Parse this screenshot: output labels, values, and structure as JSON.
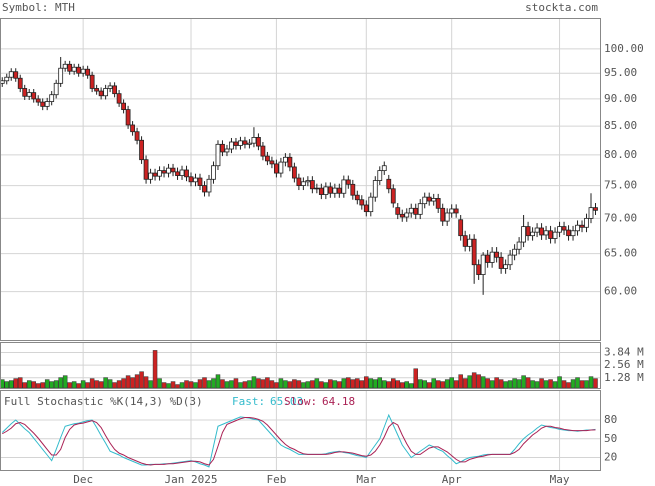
{
  "chart_data": [
    {
      "type": "candlestick",
      "title": "Symbol: MTH",
      "source": "stockta.com",
      "log_scale": true,
      "grid": true,
      "up_color": "#ffffff",
      "down_color": "#cc2222",
      "ylim": [
        54.2,
        106.7
      ],
      "yticks": [
        {
          "value": 100,
          "label": "100.00"
        },
        {
          "value": 95,
          "label": "95.00"
        },
        {
          "value": 90,
          "label": "90.00"
        },
        {
          "value": 85,
          "label": "85.00"
        },
        {
          "value": 80,
          "label": "80.00"
        },
        {
          "value": 75,
          "label": "75.00"
        },
        {
          "value": 70,
          "label": "70.00"
        },
        {
          "value": 65,
          "label": "65.00"
        },
        {
          "value": 60,
          "label": "60.00"
        }
      ],
      "xlim": [
        -0.5,
        133
      ],
      "xticks": [
        {
          "value": 18,
          "label": "Dec"
        },
        {
          "value": 42,
          "label": "Jan 2025"
        },
        {
          "value": 61,
          "label": "Feb"
        },
        {
          "value": 81,
          "label": "Mar"
        },
        {
          "value": 100,
          "label": "Apr"
        },
        {
          "value": 124,
          "label": "May"
        }
      ],
      "candles": [
        [
          93.0,
          94.2,
          92.3,
          93.5
        ],
        [
          93.5,
          94.9,
          92.8,
          94.2
        ],
        [
          94.2,
          96.0,
          93.5,
          95.3
        ],
        [
          95.3,
          96.0,
          93.3,
          94.0
        ],
        [
          94.0,
          94.7,
          91.3,
          92.0
        ],
        [
          92.0,
          92.7,
          89.8,
          90.5
        ],
        [
          90.5,
          91.9,
          89.8,
          91.2
        ],
        [
          91.2,
          91.9,
          89.3,
          90.0
        ],
        [
          90.0,
          90.7,
          88.7,
          89.4
        ],
        [
          89.4,
          90.1,
          87.9,
          88.6
        ],
        [
          88.6,
          90.2,
          87.9,
          89.5
        ],
        [
          89.5,
          91.5,
          88.8,
          90.8
        ],
        [
          90.8,
          93.7,
          90.1,
          93.0
        ],
        [
          93.0,
          98.3,
          92.3,
          96.0
        ],
        [
          96.0,
          97.5,
          95.3,
          96.8
        ],
        [
          96.8,
          97.5,
          94.7,
          95.4
        ],
        [
          95.4,
          96.9,
          94.7,
          96.2
        ],
        [
          96.2,
          96.9,
          94.3,
          95.0
        ],
        [
          95.0,
          96.5,
          94.3,
          95.8
        ],
        [
          95.8,
          96.5,
          93.9,
          94.6
        ],
        [
          94.6,
          95.3,
          91.3,
          92.0
        ],
        [
          92.0,
          92.7,
          90.8,
          91.5
        ],
        [
          91.5,
          92.2,
          89.9,
          90.6
        ],
        [
          90.6,
          92.7,
          89.9,
          92.0
        ],
        [
          92.0,
          93.2,
          91.3,
          92.5
        ],
        [
          92.5,
          93.2,
          90.3,
          91.0
        ],
        [
          91.0,
          91.7,
          88.5,
          89.2
        ],
        [
          89.2,
          89.9,
          87.3,
          88.0
        ],
        [
          88.0,
          88.7,
          84.5,
          85.2
        ],
        [
          85.2,
          85.9,
          83.3,
          84.0
        ],
        [
          84.0,
          84.7,
          81.8,
          82.5
        ],
        [
          82.5,
          83.2,
          78.5,
          79.2
        ],
        [
          79.2,
          79.9,
          75.3,
          76.0
        ],
        [
          76.0,
          77.7,
          75.3,
          77.0
        ],
        [
          77.0,
          77.7,
          75.8,
          76.5
        ],
        [
          76.5,
          78.1,
          75.8,
          77.4
        ],
        [
          77.4,
          78.1,
          76.3,
          77.0
        ],
        [
          77.0,
          78.5,
          76.3,
          77.8
        ],
        [
          77.8,
          78.5,
          76.5,
          77.2
        ],
        [
          77.2,
          77.9,
          75.9,
          76.6
        ],
        [
          76.6,
          78.2,
          75.9,
          77.5
        ],
        [
          77.5,
          78.2,
          75.7,
          76.4
        ],
        [
          76.4,
          77.1,
          74.9,
          75.6
        ],
        [
          75.6,
          76.9,
          74.9,
          76.2
        ],
        [
          76.2,
          76.9,
          74.3,
          75.0
        ],
        [
          75.0,
          75.7,
          73.3,
          74.0
        ],
        [
          74.0,
          76.7,
          73.3,
          76.0
        ],
        [
          76.0,
          78.9,
          75.3,
          78.2
        ],
        [
          78.2,
          82.5,
          77.5,
          81.8
        ],
        [
          81.8,
          82.5,
          79.8,
          80.5
        ],
        [
          80.5,
          81.7,
          79.8,
          81.0
        ],
        [
          81.0,
          82.9,
          80.3,
          82.2
        ],
        [
          82.2,
          82.9,
          80.9,
          81.6
        ],
        [
          81.6,
          83.1,
          80.9,
          82.4
        ],
        [
          82.4,
          83.1,
          81.1,
          81.8
        ],
        [
          81.8,
          82.7,
          81.1,
          82.0
        ],
        [
          82.0,
          84.8,
          81.3,
          83.0
        ],
        [
          83.0,
          83.7,
          80.8,
          81.5
        ],
        [
          81.5,
          82.2,
          79.1,
          79.8
        ],
        [
          79.8,
          80.5,
          78.3,
          79.0
        ],
        [
          79.0,
          79.7,
          77.8,
          78.5
        ],
        [
          78.5,
          79.2,
          76.3,
          77.0
        ],
        [
          77.0,
          79.5,
          76.3,
          78.8
        ],
        [
          78.8,
          80.3,
          78.1,
          79.6
        ],
        [
          79.6,
          80.3,
          77.3,
          78.0
        ],
        [
          78.0,
          78.7,
          75.5,
          76.2
        ],
        [
          76.2,
          76.9,
          74.3,
          75.0
        ],
        [
          75.0,
          76.3,
          74.3,
          75.6
        ],
        [
          75.6,
          76.5,
          74.9,
          75.8
        ],
        [
          75.8,
          76.5,
          73.8,
          74.5
        ],
        [
          74.5,
          75.3,
          73.8,
          74.6
        ],
        [
          74.6,
          75.3,
          72.9,
          73.6
        ],
        [
          73.6,
          75.5,
          72.9,
          74.8
        ],
        [
          74.8,
          75.5,
          73.1,
          73.8
        ],
        [
          73.8,
          75.3,
          73.1,
          74.6
        ],
        [
          74.6,
          75.3,
          73.1,
          73.8
        ],
        [
          73.8,
          76.6,
          73.1,
          75.9
        ],
        [
          75.9,
          76.6,
          74.5,
          75.2
        ],
        [
          75.2,
          75.9,
          72.8,
          73.5
        ],
        [
          73.5,
          74.2,
          72.1,
          72.8
        ],
        [
          72.8,
          73.5,
          71.3,
          72.0
        ],
        [
          72.0,
          72.7,
          70.3,
          71.0
        ],
        [
          71.0,
          73.9,
          70.3,
          73.2
        ],
        [
          73.2,
          76.5,
          72.5,
          75.8
        ],
        [
          75.8,
          78.1,
          75.1,
          77.4
        ],
        [
          77.4,
          78.9,
          76.7,
          78.2
        ],
        [
          76.0,
          76.7,
          73.8,
          74.5
        ],
        [
          74.5,
          75.2,
          71.6,
          72.3
        ],
        [
          71.6,
          72.3,
          69.9,
          70.6
        ],
        [
          70.6,
          71.3,
          69.5,
          70.2
        ],
        [
          70.2,
          71.5,
          69.5,
          70.8
        ],
        [
          70.8,
          72.2,
          70.1,
          71.5
        ],
        [
          71.5,
          72.2,
          69.9,
          70.6
        ],
        [
          70.6,
          72.9,
          69.9,
          72.2
        ],
        [
          72.2,
          73.9,
          71.5,
          73.2
        ],
        [
          73.2,
          73.9,
          71.9,
          72.6
        ],
        [
          72.6,
          73.7,
          71.9,
          73.0
        ],
        [
          73.0,
          73.7,
          70.8,
          71.5
        ],
        [
          71.5,
          72.2,
          68.9,
          69.6
        ],
        [
          69.6,
          71.5,
          68.9,
          70.8
        ],
        [
          70.8,
          72.1,
          70.1,
          71.4
        ],
        [
          71.4,
          72.1,
          70.1,
          70.8
        ],
        [
          69.8,
          70.5,
          66.8,
          67.5
        ],
        [
          67.5,
          68.2,
          65.3,
          66.0
        ],
        [
          66.0,
          67.7,
          65.3,
          67.0
        ],
        [
          67.0,
          67.7,
          61.0,
          63.5
        ],
        [
          63.5,
          64.2,
          61.5,
          62.2
        ],
        [
          62.2,
          65.2,
          59.6,
          64.8
        ],
        [
          64.8,
          65.5,
          63.1,
          63.8
        ],
        [
          63.8,
          65.9,
          63.1,
          65.2
        ],
        [
          65.2,
          65.9,
          63.8,
          64.5
        ],
        [
          64.5,
          65.2,
          62.3,
          63.0
        ],
        [
          63.0,
          64.2,
          62.3,
          63.5
        ],
        [
          63.5,
          65.5,
          62.8,
          64.8
        ],
        [
          64.8,
          66.3,
          64.1,
          65.6
        ],
        [
          65.6,
          67.3,
          64.9,
          66.6
        ],
        [
          66.6,
          70.5,
          65.9,
          68.8
        ],
        [
          68.8,
          69.5,
          66.8,
          67.5
        ],
        [
          67.5,
          68.7,
          66.8,
          68.0
        ],
        [
          68.0,
          69.3,
          67.3,
          68.6
        ],
        [
          68.6,
          69.3,
          66.9,
          67.6
        ],
        [
          67.6,
          68.9,
          66.9,
          68.2
        ],
        [
          68.2,
          68.9,
          66.4,
          67.1
        ],
        [
          67.1,
          68.7,
          66.4,
          68.0
        ],
        [
          68.0,
          69.5,
          67.3,
          68.8
        ],
        [
          68.8,
          69.5,
          67.6,
          68.3
        ],
        [
          68.3,
          69.0,
          66.8,
          67.5
        ],
        [
          67.5,
          68.9,
          66.8,
          68.2
        ],
        [
          68.2,
          69.7,
          67.5,
          69.0
        ],
        [
          69.0,
          69.7,
          68.0,
          68.7
        ],
        [
          68.7,
          70.7,
          68.0,
          70.0
        ],
        [
          70.0,
          73.8,
          69.3,
          71.6
        ],
        [
          71.6,
          72.3,
          70.5,
          71.2
        ]
      ]
    },
    {
      "type": "bar",
      "up_color": "#22aa22",
      "down_color": "#cc2222",
      "ylim": [
        0.25,
        4.9
      ],
      "yticks": [
        {
          "value": 3.84,
          "label": "3.84 M"
        },
        {
          "value": 2.56,
          "label": "2.56 M"
        },
        {
          "value": 1.28,
          "label": "1.28 M"
        }
      ],
      "values": [
        1.1,
        0.9,
        1.0,
        1.2,
        1.3,
        0.8,
        1.0,
        0.9,
        0.7,
        0.8,
        1.1,
        0.9,
        1.0,
        1.3,
        1.5,
        0.8,
        0.9,
        0.7,
        1.0,
        0.8,
        1.2,
        1.0,
        0.9,
        1.3,
        1.1,
        0.8,
        1.0,
        1.2,
        1.5,
        1.3,
        1.6,
        1.9,
        1.4,
        1.0,
        4.05,
        1.2,
        0.8,
        0.7,
        0.9,
        0.6,
        0.8,
        1.0,
        0.9,
        0.8,
        1.1,
        1.3,
        1.0,
        1.2,
        1.6,
        1.1,
        0.9,
        1.0,
        1.2,
        0.8,
        0.9,
        1.0,
        1.4,
        1.2,
        1.1,
        1.3,
        1.0,
        0.8,
        1.2,
        1.0,
        0.9,
        1.1,
        1.0,
        0.8,
        0.9,
        1.0,
        1.2,
        0.9,
        0.8,
        1.1,
        1.0,
        0.9,
        1.2,
        1.3,
        1.1,
        1.2,
        1.0,
        1.4,
        1.2,
        1.1,
        1.3,
        1.0,
        0.9,
        1.2,
        1.0,
        0.8,
        0.9,
        0.7,
        2.2,
        1.1,
        1.0,
        0.8,
        1.2,
        1.0,
        0.9,
        1.1,
        1.3,
        1.0,
        1.6,
        1.2,
        1.5,
        1.8,
        1.6,
        1.4,
        1.2,
        1.0,
        1.3,
        1.1,
        0.9,
        1.0,
        1.2,
        1.1,
        1.5,
        1.3,
        1.0,
        0.9,
        1.2,
        1.0,
        1.1,
        0.9,
        1.4,
        1.0,
        0.8,
        1.1,
        1.3,
        1.0,
        1.0,
        1.4,
        1.2
      ]
    },
    {
      "type": "line",
      "title": "Full Stochastic %K(14,3) %D(3)",
      "ylim": [
        0,
        128
      ],
      "yticks": [
        80,
        50,
        20
      ],
      "series": [
        {
          "name": "Fast:",
          "color": "#33bbcc",
          "values": [
            60,
            67,
            74,
            80,
            73,
            66,
            60,
            51,
            42,
            33,
            24,
            15,
            33,
            52,
            70,
            72,
            74,
            75,
            77,
            79,
            80,
            68,
            55,
            43,
            30,
            27,
            24,
            20,
            17,
            14,
            11,
            8,
            8,
            9,
            9,
            9,
            10,
            10,
            11,
            12,
            13,
            14,
            15,
            13,
            10,
            8,
            5,
            38,
            70,
            73,
            76,
            79,
            82,
            85,
            84,
            83,
            81,
            80,
            72,
            64,
            56,
            48,
            40,
            36,
            33,
            29,
            25,
            25,
            25,
            25,
            25,
            25,
            26,
            28,
            29,
            30,
            28,
            27,
            25,
            23,
            22,
            20,
            30,
            40,
            50,
            69,
            88,
            72,
            56,
            40,
            30,
            20,
            25,
            30,
            35,
            40,
            37,
            33,
            30,
            23,
            17,
            10,
            13,
            17,
            20,
            21,
            22,
            24,
            25,
            25,
            25,
            25,
            25,
            25,
            33,
            42,
            50,
            56,
            61,
            67,
            72,
            70,
            68,
            67,
            65,
            64,
            63,
            63,
            62,
            63,
            64,
            64,
            65.03
          ]
        },
        {
          "name": "Slow:",
          "color": "#aa2255",
          "values": [
            58,
            62,
            67,
            74,
            76,
            73,
            66,
            59,
            51,
            42,
            33,
            24,
            24,
            33,
            52,
            65,
            72,
            74,
            75,
            77,
            79,
            76,
            68,
            55,
            43,
            33,
            27,
            24,
            20,
            17,
            14,
            11,
            9,
            8,
            9,
            9,
            9,
            10,
            10,
            11,
            12,
            13,
            14,
            14,
            13,
            10,
            8,
            17,
            38,
            60,
            73,
            76,
            79,
            82,
            84,
            84,
            83,
            81,
            78,
            72,
            64,
            56,
            48,
            41,
            36,
            33,
            29,
            26,
            25,
            25,
            25,
            25,
            25,
            26,
            28,
            29,
            29,
            28,
            27,
            25,
            23,
            22,
            24,
            30,
            40,
            53,
            69,
            76,
            72,
            56,
            42,
            30,
            25,
            25,
            30,
            35,
            37,
            37,
            33,
            29,
            23,
            17,
            13,
            13,
            17,
            19,
            21,
            22,
            24,
            25,
            25,
            25,
            25,
            25,
            28,
            33,
            42,
            49,
            56,
            61,
            67,
            70,
            70,
            68,
            67,
            65,
            64,
            63,
            63,
            63,
            63,
            64,
            64.18
          ]
        }
      ]
    }
  ]
}
